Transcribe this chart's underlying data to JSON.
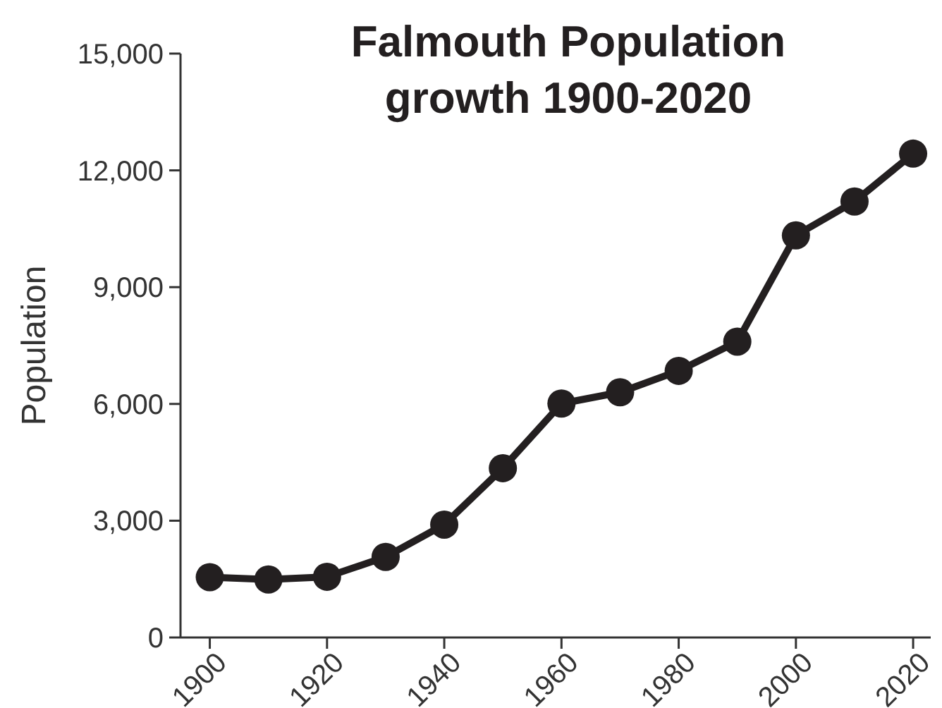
{
  "chart_data": {
    "type": "line",
    "title": "Falmouth Population\ngrowth 1900-2020",
    "ylabel": "Population",
    "x": [
      1900,
      1910,
      1920,
      1930,
      1940,
      1950,
      1960,
      1970,
      1980,
      1990,
      2000,
      2010,
      2020
    ],
    "series": [
      {
        "color": "#231f20",
        "values": [
          1550,
          1490,
          1560,
          2070,
          2900,
          4350,
          6010,
          6300,
          6850,
          7600,
          10330,
          11200,
          12430
        ]
      }
    ],
    "xlim": [
      1895,
      2023
    ],
    "xticks": [
      1900,
      1920,
      1940,
      1960,
      1980,
      2000,
      2020
    ],
    "ylim": [
      0,
      15000
    ],
    "yticks": [
      {
        "value": 0,
        "label": "0"
      },
      {
        "value": 3000,
        "label": "3,000"
      },
      {
        "value": 6000,
        "label": "6,000"
      },
      {
        "value": 9000,
        "label": "9,000"
      },
      {
        "value": 12000,
        "label": "12,000"
      },
      {
        "value": 15000,
        "label": "15,000"
      }
    ],
    "grid": false,
    "marker": "circle",
    "line_style": "solid"
  }
}
